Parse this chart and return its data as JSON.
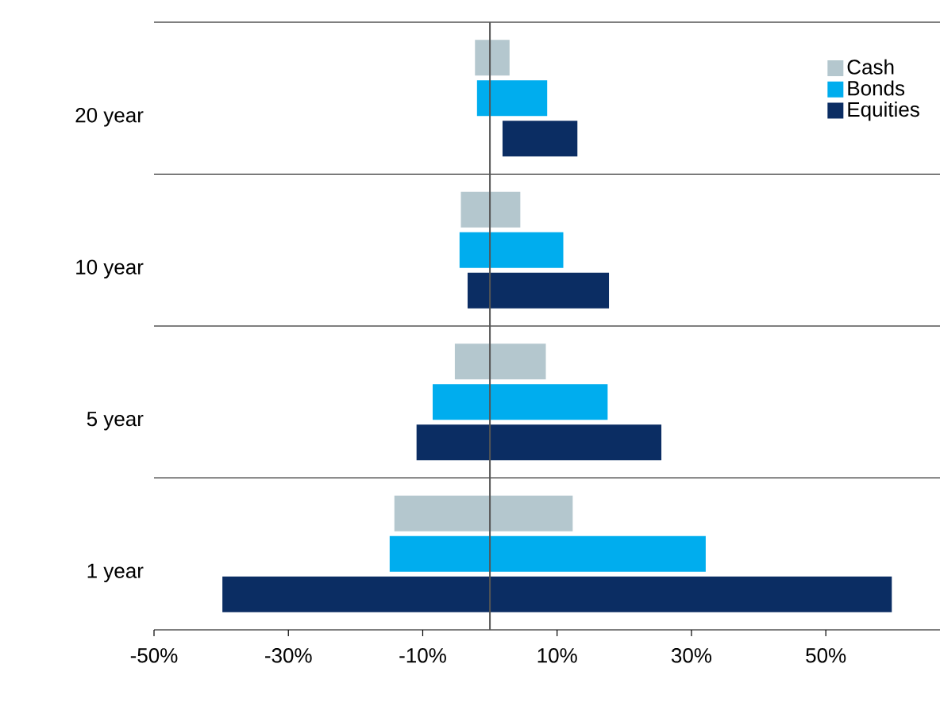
{
  "chart_data": {
    "type": "bar",
    "orientation": "horizontal",
    "categories": [
      "20 year",
      "10 year",
      "5 year",
      "1 year"
    ],
    "series": [
      {
        "name": "Cash",
        "color": "#b4c7ce",
        "base": [
          -2.4,
          -4.5,
          -5.4,
          -14.4
        ],
        "values": [
          5.5,
          9.2,
          13.9,
          26.9
        ]
      },
      {
        "name": "Bonds",
        "color": "#00adee",
        "base": [
          -2.1,
          -4.7,
          -8.7,
          -15.1
        ],
        "values": [
          10.8,
          15.8,
          26.4,
          47.4
        ]
      },
      {
        "name": "Equities",
        "color": "#0b2d63",
        "base": [
          1.7,
          -3.5,
          -11.1,
          -40
        ],
        "values": [
          11.5,
          21.4,
          36.8,
          100
        ]
      }
    ],
    "xlim": [
      -50,
      67
    ],
    "xticks": [
      {
        "value": -50,
        "label": "-50%"
      },
      {
        "value": -30,
        "label": "-30%"
      },
      {
        "value": -10,
        "label": "-10%"
      },
      {
        "value": 10,
        "label": "10%"
      },
      {
        "value": 30,
        "label": "30%"
      },
      {
        "value": 50,
        "label": "50%"
      }
    ],
    "grid": "y",
    "legend": "top right",
    "ref_lines": [
      {
        "axis": "x",
        "value": 0,
        "color": "#555555"
      }
    ]
  }
}
